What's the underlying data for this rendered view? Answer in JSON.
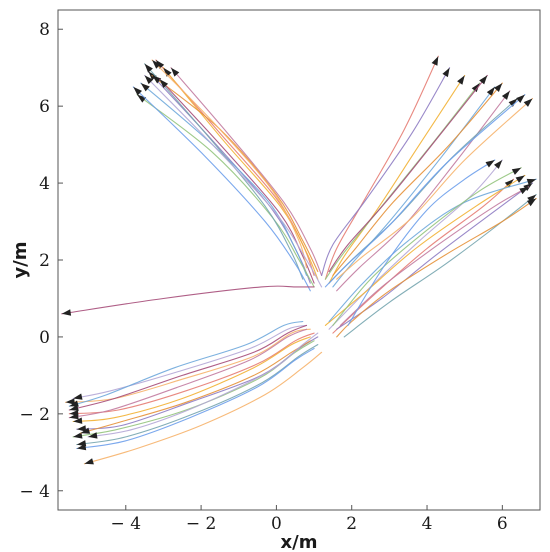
{
  "chart_data": {
    "type": "line",
    "title": "",
    "xlabel": "x/m",
    "ylabel": "y/m",
    "xlim": [
      -5.8,
      7.0
    ],
    "ylim": [
      -4.5,
      8.5
    ],
    "xticks": [
      -4,
      -2,
      0,
      2,
      4,
      6
    ],
    "yticks": [
      -4,
      -2,
      0,
      2,
      4,
      6,
      8
    ],
    "xtick_labels": [
      "− 4",
      "− 2",
      "0",
      "2",
      "4",
      "6"
    ],
    "ytick_labels": [
      "− 4",
      "− 2",
      "0",
      "2",
      "4",
      "6",
      "8"
    ],
    "grid": false,
    "legend": false,
    "palette": [
      "#e67c73",
      "#f2b134",
      "#8e7cc3",
      "#6fa8dc",
      "#93c47d",
      "#c27ba0",
      "#76a5af",
      "#e69138",
      "#6d9eeb",
      "#a64d79",
      "#f6b26b",
      "#b4a7d6"
    ],
    "series": [
      {
        "x": [
          1.0,
          0.7,
          0.0,
          -1.5,
          -3.2
        ],
        "y": [
          1.6,
          2.4,
          3.6,
          5.3,
          7.2
        ]
      },
      {
        "x": [
          1.1,
          0.8,
          0.1,
          -1.4,
          -3.0
        ],
        "y": [
          1.5,
          2.2,
          3.4,
          5.1,
          7.0
        ]
      },
      {
        "x": [
          0.9,
          0.6,
          -0.1,
          -1.6,
          -3.4
        ],
        "y": [
          1.4,
          2.1,
          3.3,
          5.0,
          6.9
        ]
      },
      {
        "x": [
          0.8,
          0.5,
          -0.2,
          -1.7,
          -3.6
        ],
        "y": [
          1.6,
          2.3,
          3.5,
          5.0,
          6.6
        ]
      },
      {
        "x": [
          1.0,
          0.6,
          -0.1,
          -1.7,
          -3.7
        ],
        "y": [
          1.3,
          2.0,
          3.1,
          4.8,
          6.3
        ]
      },
      {
        "x": [
          1.2,
          0.9,
          0.2,
          -1.3,
          -2.8
        ],
        "y": [
          1.6,
          2.3,
          3.5,
          5.3,
          7.0
        ]
      },
      {
        "x": [
          0.7,
          0.4,
          -0.3,
          -1.8,
          -3.5
        ],
        "y": [
          1.5,
          2.2,
          3.4,
          5.2,
          7.1
        ]
      },
      {
        "x": [
          1.1,
          0.7,
          0.0,
          -1.5,
          -3.3
        ],
        "y": [
          1.7,
          2.5,
          3.7,
          5.4,
          6.8
        ]
      },
      {
        "x": [
          0.9,
          0.5,
          -0.3,
          -1.9,
          -3.8
        ],
        "y": [
          1.2,
          1.9,
          3.0,
          4.7,
          6.5
        ]
      },
      {
        "x": [
          1.0,
          0.7,
          0.1,
          -1.4,
          -3.1
        ],
        "y": [
          1.4,
          2.1,
          3.2,
          4.9,
          6.7
        ]
      },
      {
        "x": [
          0.8,
          0.6,
          -0.1,
          -1.6,
          -3.3
        ],
        "y": [
          1.8,
          2.5,
          3.8,
          5.5,
          7.2
        ]
      },
      {
        "x": [
          1.2,
          0.8,
          0.0,
          -1.6,
          -3.5
        ],
        "y": [
          1.3,
          2.0,
          3.2,
          4.9,
          6.8
        ]
      },
      {
        "x": [
          1.3,
          1.6,
          2.3,
          3.4,
          4.3
        ],
        "y": [
          1.5,
          2.3,
          3.5,
          5.4,
          7.3
        ]
      },
      {
        "x": [
          1.4,
          1.8,
          2.6,
          3.8,
          5.0
        ],
        "y": [
          1.4,
          2.1,
          3.2,
          5.0,
          6.8
        ]
      },
      {
        "x": [
          1.2,
          1.5,
          2.4,
          3.6,
          4.6
        ],
        "y": [
          1.6,
          2.4,
          3.6,
          5.3,
          7.0
        ]
      },
      {
        "x": [
          1.5,
          2.0,
          3.0,
          4.4,
          5.8
        ],
        "y": [
          1.3,
          1.9,
          3.0,
          4.7,
          6.5
        ]
      },
      {
        "x": [
          1.3,
          1.8,
          2.8,
          4.2,
          5.4
        ],
        "y": [
          1.5,
          2.2,
          3.4,
          5.1,
          6.6
        ]
      },
      {
        "x": [
          1.6,
          2.2,
          3.4,
          4.8,
          6.2
        ],
        "y": [
          1.2,
          1.8,
          2.9,
          4.6,
          6.4
        ]
      },
      {
        "x": [
          1.4,
          2.0,
          3.2,
          4.7,
          6.4
        ],
        "y": [
          1.4,
          2.0,
          3.1,
          4.7,
          6.2
        ]
      },
      {
        "x": [
          1.5,
          2.1,
          3.1,
          4.6,
          6.0
        ],
        "y": [
          1.6,
          2.3,
          3.5,
          5.0,
          6.6
        ]
      },
      {
        "x": [
          1.3,
          1.9,
          3.0,
          4.5,
          6.6
        ],
        "y": [
          1.3,
          1.9,
          2.9,
          4.5,
          6.3
        ]
      },
      {
        "x": [
          1.4,
          1.9,
          2.9,
          4.3,
          5.6
        ],
        "y": [
          1.7,
          2.4,
          3.5,
          5.2,
          6.8
        ]
      },
      {
        "x": [
          1.6,
          2.3,
          3.6,
          5.0,
          6.8
        ],
        "y": [
          1.5,
          2.1,
          3.1,
          4.6,
          6.2
        ]
      },
      {
        "x": [
          1.4,
          2.5,
          3.8,
          5.2,
          6.0
        ],
        "y": [
          0.2,
          1.3,
          2.5,
          3.7,
          4.6
        ]
      },
      {
        "x": [
          1.5,
          2.6,
          4.0,
          5.5,
          6.3
        ],
        "y": [
          0.1,
          1.1,
          2.3,
          3.4,
          4.1
        ]
      },
      {
        "x": [
          1.3,
          2.4,
          3.7,
          5.3,
          6.6
        ],
        "y": [
          0.3,
          1.2,
          2.3,
          3.4,
          4.2
        ]
      },
      {
        "x": [
          1.6,
          2.8,
          4.2,
          5.7,
          6.8
        ],
        "y": [
          0.2,
          1.0,
          2.1,
          3.2,
          4.0
        ]
      },
      {
        "x": [
          1.4,
          2.3,
          3.5,
          5.0,
          6.9
        ],
        "y": [
          0.4,
          1.4,
          2.5,
          3.5,
          4.1
        ]
      },
      {
        "x": [
          1.5,
          2.5,
          3.9,
          5.4,
          6.5
        ],
        "y": [
          0.3,
          1.5,
          2.7,
          3.8,
          4.4
        ]
      },
      {
        "x": [
          1.7,
          2.8,
          4.3,
          5.8,
          6.7
        ],
        "y": [
          0.3,
          1.3,
          2.4,
          3.4,
          3.9
        ]
      },
      {
        "x": [
          1.8,
          3.0,
          4.5,
          6.0,
          6.9
        ],
        "y": [
          0.0,
          0.9,
          1.9,
          3.0,
          3.7
        ]
      },
      {
        "x": [
          1.6,
          2.0,
          3.0,
          4.6,
          6.0,
          6.9
        ],
        "y": [
          0.0,
          0.4,
          1.2,
          2.2,
          3.0,
          3.6
        ]
      },
      {
        "x": [
          1.9,
          2.9,
          4.0,
          5.0,
          5.8
        ],
        "y": [
          0.3,
          1.9,
          3.3,
          4.1,
          4.6
        ]
      },
      {
        "x": [
          1.0,
          0.5,
          -0.4,
          -3.0,
          -5.7
        ],
        "y": [
          1.3,
          1.3,
          1.3,
          1.0,
          0.6
        ]
      },
      {
        "x": [
          0.9,
          0.4,
          -0.6,
          -2.5,
          -4.3,
          -5.6
        ],
        "y": [
          0.2,
          0.1,
          -0.5,
          -1.1,
          -1.6,
          -1.7
        ]
      },
      {
        "x": [
          0.8,
          0.3,
          -0.7,
          -2.6,
          -4.4,
          -5.4
        ],
        "y": [
          0.3,
          0.2,
          -0.3,
          -0.9,
          -1.4,
          -1.6
        ]
      },
      {
        "x": [
          1.0,
          0.5,
          -0.5,
          -2.4,
          -4.2,
          -5.5
        ],
        "y": [
          0.1,
          -0.1,
          -0.7,
          -1.4,
          -1.9,
          -2.0
        ]
      },
      {
        "x": [
          0.9,
          0.4,
          -0.6,
          -2.5,
          -4.3,
          -5.4
        ],
        "y": [
          0.0,
          -0.2,
          -0.8,
          -1.6,
          -2.1,
          -2.2
        ]
      },
      {
        "x": [
          1.1,
          0.6,
          -0.4,
          -2.3,
          -4.1,
          -5.3
        ],
        "y": [
          0.0,
          -0.3,
          -1.0,
          -1.7,
          -2.3,
          -2.4
        ]
      },
      {
        "x": [
          0.7,
          0.2,
          -0.8,
          -2.7,
          -4.5,
          -5.5
        ],
        "y": [
          0.4,
          0.3,
          -0.2,
          -0.8,
          -1.5,
          -1.8
        ]
      },
      {
        "x": [
          1.0,
          0.5,
          -0.5,
          -2.4,
          -4.2,
          -5.4
        ],
        "y": [
          -0.1,
          -0.4,
          -1.1,
          -1.9,
          -2.4,
          -2.6
        ]
      },
      {
        "x": [
          0.8,
          0.3,
          -0.7,
          -2.6,
          -4.4,
          -5.5
        ],
        "y": [
          0.2,
          0.0,
          -0.6,
          -1.3,
          -1.9,
          -2.1
        ]
      },
      {
        "x": [
          1.1,
          0.6,
          -0.4,
          -2.2,
          -4.0,
          -5.3
        ],
        "y": [
          -0.2,
          -0.5,
          -1.2,
          -2.0,
          -2.6,
          -2.8
        ]
      },
      {
        "x": [
          0.9,
          0.4,
          -0.6,
          -2.4,
          -4.1,
          -5.2
        ],
        "y": [
          -0.1,
          -0.4,
          -1.0,
          -1.7,
          -2.2,
          -2.5
        ]
      },
      {
        "x": [
          1.0,
          0.5,
          -0.5,
          -2.3,
          -4.0,
          -5.3
        ],
        "y": [
          -0.3,
          -0.6,
          -1.3,
          -2.1,
          -2.7,
          -2.9
        ]
      },
      {
        "x": [
          0.8,
          0.3,
          -0.6,
          -2.5,
          -4.3,
          -5.5
        ],
        "y": [
          0.3,
          0.1,
          -0.4,
          -1.0,
          -1.6,
          -1.9
        ]
      },
      {
        "x": [
          1.2,
          0.7,
          -0.3,
          -2.0,
          -3.7,
          -5.1
        ],
        "y": [
          -0.4,
          -0.8,
          -1.5,
          -2.3,
          -2.9,
          -3.3
        ]
      },
      {
        "x": [
          1.1,
          0.7,
          -0.2,
          -2.1,
          -3.8,
          -5.0
        ],
        "y": [
          0.1,
          -0.2,
          -0.9,
          -1.8,
          -2.4,
          -2.6
        ]
      }
    ]
  }
}
